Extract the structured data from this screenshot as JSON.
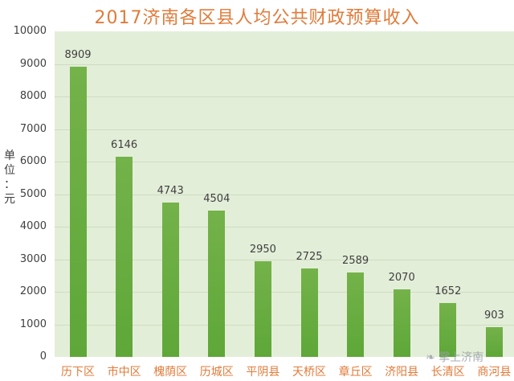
{
  "chart_data": {
    "type": "bar",
    "title": "2017济南各区县人均公共财政预算收入",
    "xlabel": "",
    "ylabel": "单位：元",
    "ylim": [
      0,
      10000
    ],
    "yticks": [
      0,
      1000,
      2000,
      3000,
      4000,
      5000,
      6000,
      7000,
      8000,
      9000,
      10000
    ],
    "grid": true,
    "legend": null,
    "categories": [
      "历下区",
      "市中区",
      "槐荫区",
      "历城区",
      "平阴县",
      "天桥区",
      "章丘区",
      "济阳县",
      "长清区",
      "商河县"
    ],
    "values": [
      8909,
      6146,
      4743,
      4504,
      2950,
      2725,
      2589,
      2070,
      1652,
      903
    ],
    "bar_color": "#6aae42",
    "title_color": "#e07b3a",
    "category_label_color": "#e07b3a",
    "plot_background": "#e3eed8"
  },
  "ylabel_chars": [
    "单",
    "位",
    "：",
    "元"
  ],
  "watermark": "掌上济南"
}
